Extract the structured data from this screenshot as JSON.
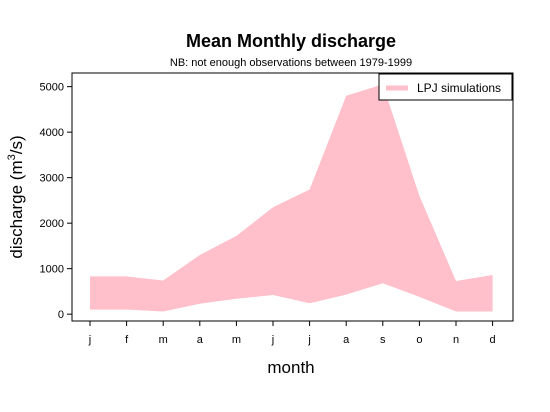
{
  "chart_data": {
    "type": "area",
    "title": "Mean Monthly discharge",
    "subtitle": "NB: not enough observations between 1979-1999",
    "xlabel": "month",
    "ylabel_main": "discharge (m",
    "ylabel_sup": "3",
    "ylabel_end": "/s)",
    "categories": [
      "j",
      "f",
      "m",
      "a",
      "m",
      "j",
      "j",
      "a",
      "s",
      "o",
      "n",
      "d"
    ],
    "ylim": [
      -150,
      5300
    ],
    "yticks": [
      0,
      1000,
      2000,
      3000,
      4000,
      5000
    ],
    "ytick_labels": [
      "0",
      "1000",
      "2000",
      "3000",
      "4000",
      "5000"
    ],
    "legend_position": "top-right",
    "series": [
      {
        "name": "LPJ simulations",
        "color": "#ffc0cb",
        "upper": [
          830,
          830,
          740,
          1300,
          1720,
          2350,
          2740,
          4800,
          5050,
          2600,
          730,
          860
        ],
        "lower": [
          100,
          100,
          60,
          230,
          340,
          420,
          240,
          430,
          680,
          380,
          60,
          60
        ]
      }
    ]
  }
}
